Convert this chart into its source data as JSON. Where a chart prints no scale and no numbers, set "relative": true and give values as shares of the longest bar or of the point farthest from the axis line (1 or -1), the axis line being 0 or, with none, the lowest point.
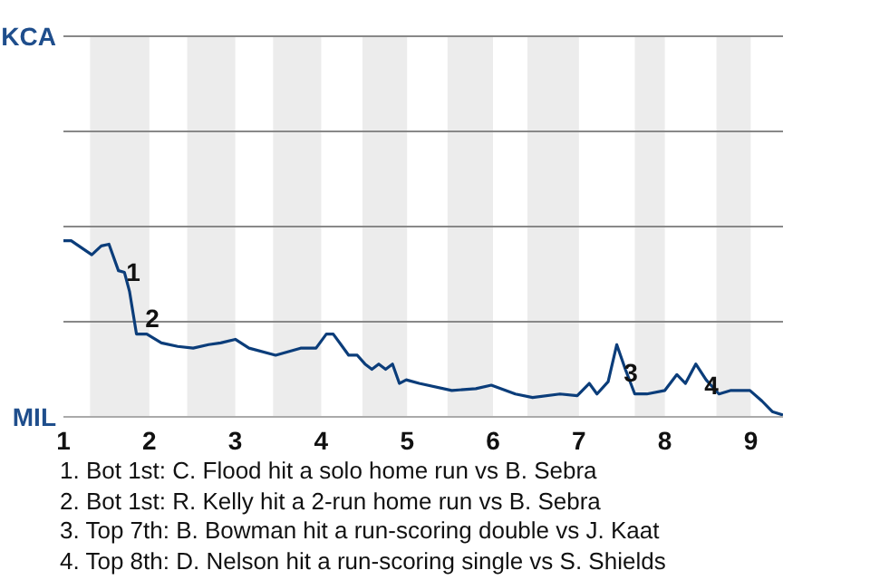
{
  "chart_data": {
    "type": "line",
    "relative": true,
    "x": [
      1,
      1.09,
      1.21,
      1.33,
      1.44,
      1.53,
      1.64,
      1.71,
      1.77,
      1.85,
      1.97,
      2.14,
      2.33,
      2.51,
      2.69,
      2.83,
      3,
      3.16,
      3.47,
      3.76,
      3.94,
      4.06,
      4.14,
      4.23,
      4.32,
      4.42,
      4.51,
      4.59,
      4.67,
      4.75,
      4.83,
      4.91,
      4.99,
      5.14,
      5.52,
      5.8,
      5.98,
      6.26,
      6.46,
      6.78,
      6.98,
      7.12,
      7.21,
      7.34,
      7.44,
      7.54,
      7.65,
      7.79,
      8,
      8.14,
      8.24,
      8.36,
      8.48,
      8.63,
      8.77,
      8.99,
      9.13,
      9.25,
      9.375
    ],
    "series": [
      {
        "color": "#0b3d7a",
        "values": [
          1,
          1,
          0.96,
          0.92,
          0.97,
          0.98,
          0.83,
          0.82,
          0.71,
          0.47,
          0.47,
          0.42,
          0.4,
          0.39,
          0.41,
          0.42,
          0.44,
          0.39,
          0.35,
          0.39,
          0.39,
          0.47,
          0.47,
          0.41,
          0.35,
          0.35,
          0.3,
          0.27,
          0.3,
          0.27,
          0.3,
          0.19,
          0.21,
          0.19,
          0.15,
          0.16,
          0.18,
          0.13,
          0.11,
          0.13,
          0.12,
          0.19,
          0.13,
          0.2,
          0.41,
          0.27,
          0.13,
          0.13,
          0.15,
          0.24,
          0.19,
          0.3,
          0.21,
          0.13,
          0.15,
          0.15,
          0.09,
          0.03,
          0.01
        ]
      }
    ],
    "xlim": [
      1,
      9.375
    ],
    "xticks": [
      1,
      2,
      3,
      4,
      5,
      6,
      7,
      8,
      9
    ],
    "marker": "none",
    "line_style": "solid",
    "ref_lines": [
      {
        "axis": "y",
        "value": 0.54,
        "color": "#888888"
      },
      {
        "axis": "y",
        "value": 1.08,
        "color": "#888888"
      },
      {
        "axis": "y",
        "value": 1.62,
        "color": "#888888"
      },
      {
        "axis": "y",
        "value": 2.16,
        "color": "#888888"
      }
    ],
    "bands": [
      {
        "axis": "x",
        "from": 1.31,
        "to": 2,
        "color": "#ececec"
      },
      {
        "axis": "x",
        "from": 2.44,
        "to": 3,
        "color": "#ececec"
      },
      {
        "axis": "x",
        "from": 3.44,
        "to": 4,
        "color": "#ececec"
      },
      {
        "axis": "x",
        "from": 4.48,
        "to": 5,
        "color": "#ececec"
      },
      {
        "axis": "x",
        "from": 5.47,
        "to": 6,
        "color": "#ececec"
      },
      {
        "axis": "x",
        "from": 6.4,
        "to": 7,
        "color": "#ececec"
      },
      {
        "axis": "x",
        "from": 7.65,
        "to": 8,
        "color": "#ececec"
      },
      {
        "axis": "x",
        "from": 8.6,
        "to": 9,
        "color": "#ececec"
      }
    ],
    "annotations": [
      "KCA",
      "MIL",
      {
        "text": "1",
        "x": 1.71,
        "y": 0.82
      },
      {
        "text": "2",
        "x": 1.93,
        "y": 0.56
      },
      {
        "text": "3",
        "x": 7.5,
        "y": 0.25
      },
      {
        "text": "4",
        "x": 8.44,
        "y": 0.18
      },
      "1. Bot 1st: C. Flood hit a solo home run vs B. Sebra",
      "2. Bot 1st: R. Kelly hit a 2-run home run vs B. Sebra",
      "3. Top 7th: B. Bowman hit a run-scoring double vs J. Kaat",
      "4. Top 8th: D. Nelson hit a run-scoring single vs S. Shields"
    ]
  }
}
